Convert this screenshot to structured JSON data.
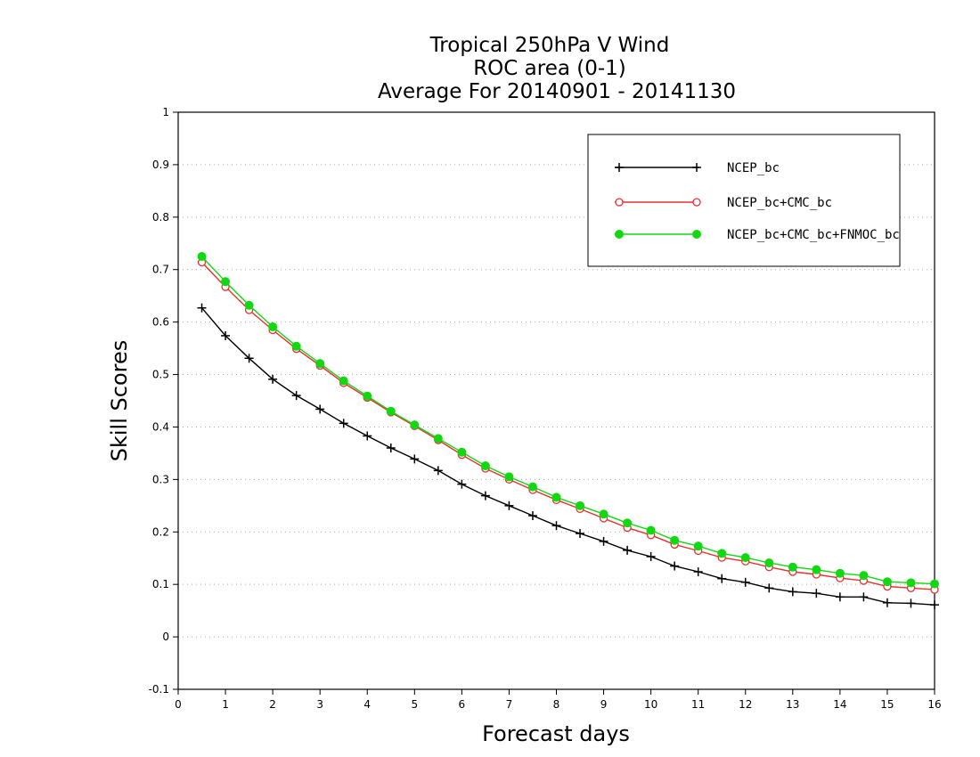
{
  "chart_data": {
    "type": "line",
    "title": [
      "Tropical 250hPa V Wind",
      "ROC area (0-1)",
      "Average For 20140901 - 20141130"
    ],
    "xlabel": "Forecast days",
    "ylabel": "Skill Scores",
    "xlim": [
      0,
      16
    ],
    "ylim": [
      -0.1,
      1
    ],
    "xticks": [
      0,
      1,
      2,
      3,
      4,
      5,
      6,
      7,
      8,
      9,
      10,
      11,
      12,
      13,
      14,
      15,
      16
    ],
    "xtick_labels": [
      "0",
      "1",
      "2",
      "3",
      "4",
      "5",
      "6",
      "7",
      "8",
      "9",
      "10",
      "11",
      "12",
      "13",
      "14",
      "15",
      "16"
    ],
    "yticks": [
      -0.1,
      0,
      0.1,
      0.2,
      0.3,
      0.4,
      0.5,
      0.6,
      0.7,
      0.8,
      0.9,
      1
    ],
    "ytick_labels": [
      "-0.1",
      "0",
      "0.1",
      "0.2",
      "0.3",
      "0.4",
      "0.5",
      "0.6",
      "0.7",
      "0.8",
      "0.9",
      "1"
    ],
    "grid": "horizontal dotted",
    "legend_position": "top-right",
    "x": [
      0.5,
      1,
      1.5,
      2,
      2.5,
      3,
      3.5,
      4,
      4.5,
      5,
      5.5,
      6,
      6.5,
      7,
      7.5,
      8,
      8.5,
      9,
      9.5,
      10,
      10.5,
      11,
      11.5,
      12,
      12.5,
      13,
      13.5,
      14,
      14.5,
      15,
      15.5,
      16
    ],
    "series": [
      {
        "name": "NCEP_bc",
        "color": "#000000",
        "marker": "plus",
        "values": [
          0.627,
          0.574,
          0.531,
          0.491,
          0.46,
          0.434,
          0.407,
          0.383,
          0.36,
          0.339,
          0.317,
          0.291,
          0.269,
          0.25,
          0.231,
          0.212,
          0.197,
          0.182,
          0.165,
          0.153,
          0.135,
          0.124,
          0.111,
          0.104,
          0.093,
          0.086,
          0.083,
          0.076,
          0.076,
          0.065,
          0.064,
          0.061
        ]
      },
      {
        "name": "NCEP_bc+CMC_bc",
        "color": "#e83030",
        "marker": "open-circle",
        "values": [
          0.714,
          0.667,
          0.623,
          0.585,
          0.549,
          0.517,
          0.484,
          0.456,
          0.428,
          0.402,
          0.375,
          0.347,
          0.321,
          0.3,
          0.28,
          0.261,
          0.244,
          0.226,
          0.208,
          0.194,
          0.176,
          0.164,
          0.151,
          0.144,
          0.133,
          0.124,
          0.119,
          0.112,
          0.107,
          0.096,
          0.093,
          0.09
        ]
      },
      {
        "name": "NCEP_bc+CMC_bc+FNMOC_bc",
        "color": "#12d812",
        "marker": "filled-circle",
        "values": [
          0.725,
          0.677,
          0.632,
          0.591,
          0.554,
          0.521,
          0.488,
          0.459,
          0.43,
          0.404,
          0.378,
          0.352,
          0.326,
          0.305,
          0.286,
          0.266,
          0.25,
          0.234,
          0.217,
          0.203,
          0.184,
          0.173,
          0.159,
          0.151,
          0.141,
          0.133,
          0.128,
          0.121,
          0.117,
          0.105,
          0.103,
          0.101
        ]
      }
    ]
  }
}
